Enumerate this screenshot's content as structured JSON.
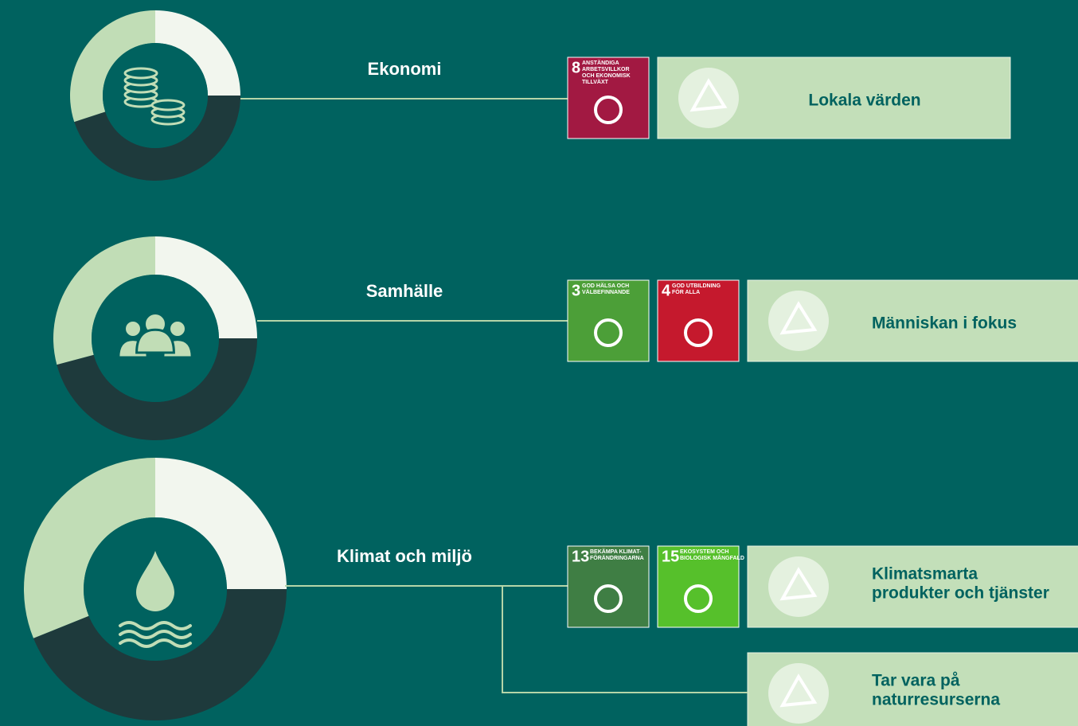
{
  "rows": [
    {
      "label": "Ekonomi",
      "goals": [
        {
          "number": 8,
          "title": [
            "ANSTÄNDIGA",
            "ARBETSVILLKOR",
            "OCH EKONOMISK",
            "TILLVÄXT"
          ]
        }
      ],
      "outcomes": [
        [
          "Lokala värden"
        ]
      ]
    },
    {
      "label": "Samhälle",
      "goals": [
        {
          "number": 3,
          "title": [
            "GOD HÄLSA OCH",
            "VÄLBEFINNANDE"
          ]
        },
        {
          "number": 4,
          "title": [
            "GOD UTBILDNING",
            "FÖR ALLA"
          ]
        }
      ],
      "outcomes": [
        [
          "Människan i fokus"
        ]
      ]
    },
    {
      "label": "Klimat och miljö",
      "goals": [
        {
          "number": 13,
          "title": [
            "BEKÄMPA KLIMAT-",
            "FÖRÄNDRINGARNA"
          ]
        },
        {
          "number": 15,
          "title": [
            "EKOSYSTEM OCH",
            "BIOLOGISK MÅNGFALD"
          ]
        }
      ],
      "outcomes": [
        [
          "Klimatsmarta",
          "produkter och tjänster"
        ],
        [
          "Tar vara på",
          "naturresurserna"
        ]
      ]
    }
  ]
}
